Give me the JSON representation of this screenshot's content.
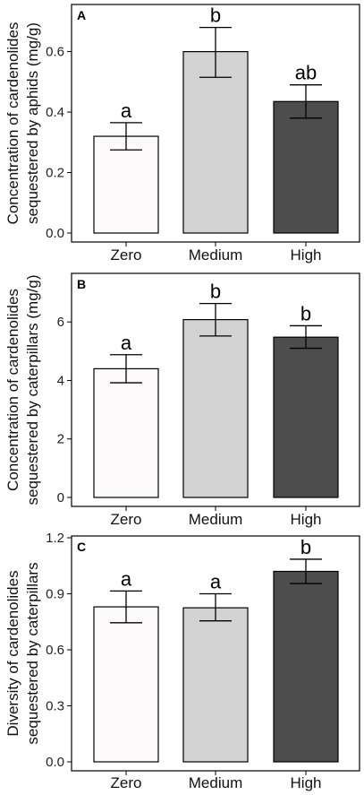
{
  "chart_data": [
    {
      "type": "bar",
      "panel_label": "A",
      "categories": [
        "Zero",
        "Medium",
        "High"
      ],
      "values": [
        0.32,
        0.6,
        0.435
      ],
      "error_low": [
        0.275,
        0.515,
        0.38
      ],
      "error_high": [
        0.365,
        0.68,
        0.49
      ],
      "letters": [
        "a",
        "b",
        "ab"
      ],
      "colors": [
        "#fdfafc",
        "#d3d3d3",
        "#4d4d4d"
      ],
      "ylabel_lines": [
        "Concentration of cardenolides",
        "sequestered by aphids (mg/g)"
      ],
      "ylim": [
        0,
        0.75
      ],
      "yticks": [
        0.0,
        0.2,
        0.4,
        0.6
      ],
      "ytick_labels": [
        "0.0",
        "0.2",
        "0.4",
        "0.6"
      ]
    },
    {
      "type": "bar",
      "panel_label": "B",
      "categories": [
        "Zero",
        "Medium",
        "High"
      ],
      "values": [
        4.4,
        6.08,
        5.48
      ],
      "error_low": [
        3.92,
        5.52,
        5.1
      ],
      "error_high": [
        4.88,
        6.63,
        5.87
      ],
      "letters": [
        "a",
        "b",
        "b"
      ],
      "colors": [
        "#fdfafc",
        "#d3d3d3",
        "#4d4d4d"
      ],
      "ylabel_lines": [
        "Concentration of cardenolides",
        "sequestered by caterpillars (mg/g)"
      ],
      "ylim": [
        0,
        7.6
      ],
      "yticks": [
        0,
        2,
        4,
        6
      ],
      "ytick_labels": [
        "0",
        "2",
        "4",
        "6"
      ]
    },
    {
      "type": "bar",
      "panel_label": "C",
      "categories": [
        "Zero",
        "Medium",
        "High"
      ],
      "values": [
        0.83,
        0.825,
        1.02
      ],
      "error_low": [
        0.745,
        0.755,
        0.955
      ],
      "error_high": [
        0.915,
        0.9,
        1.085
      ],
      "letters": [
        "a",
        "a",
        "b"
      ],
      "colors": [
        "#fdfafc",
        "#d3d3d3",
        "#4d4d4d"
      ],
      "ylabel_lines": [
        "Diversity of cardenolides",
        "sequestered by caterpillars"
      ],
      "ylim": [
        0,
        1.2
      ],
      "yticks": [
        0.0,
        0.3,
        0.6,
        0.9,
        1.2
      ],
      "ytick_labels": [
        "0.0",
        "0.3",
        "0.6",
        "0.9",
        "1.2"
      ]
    }
  ]
}
